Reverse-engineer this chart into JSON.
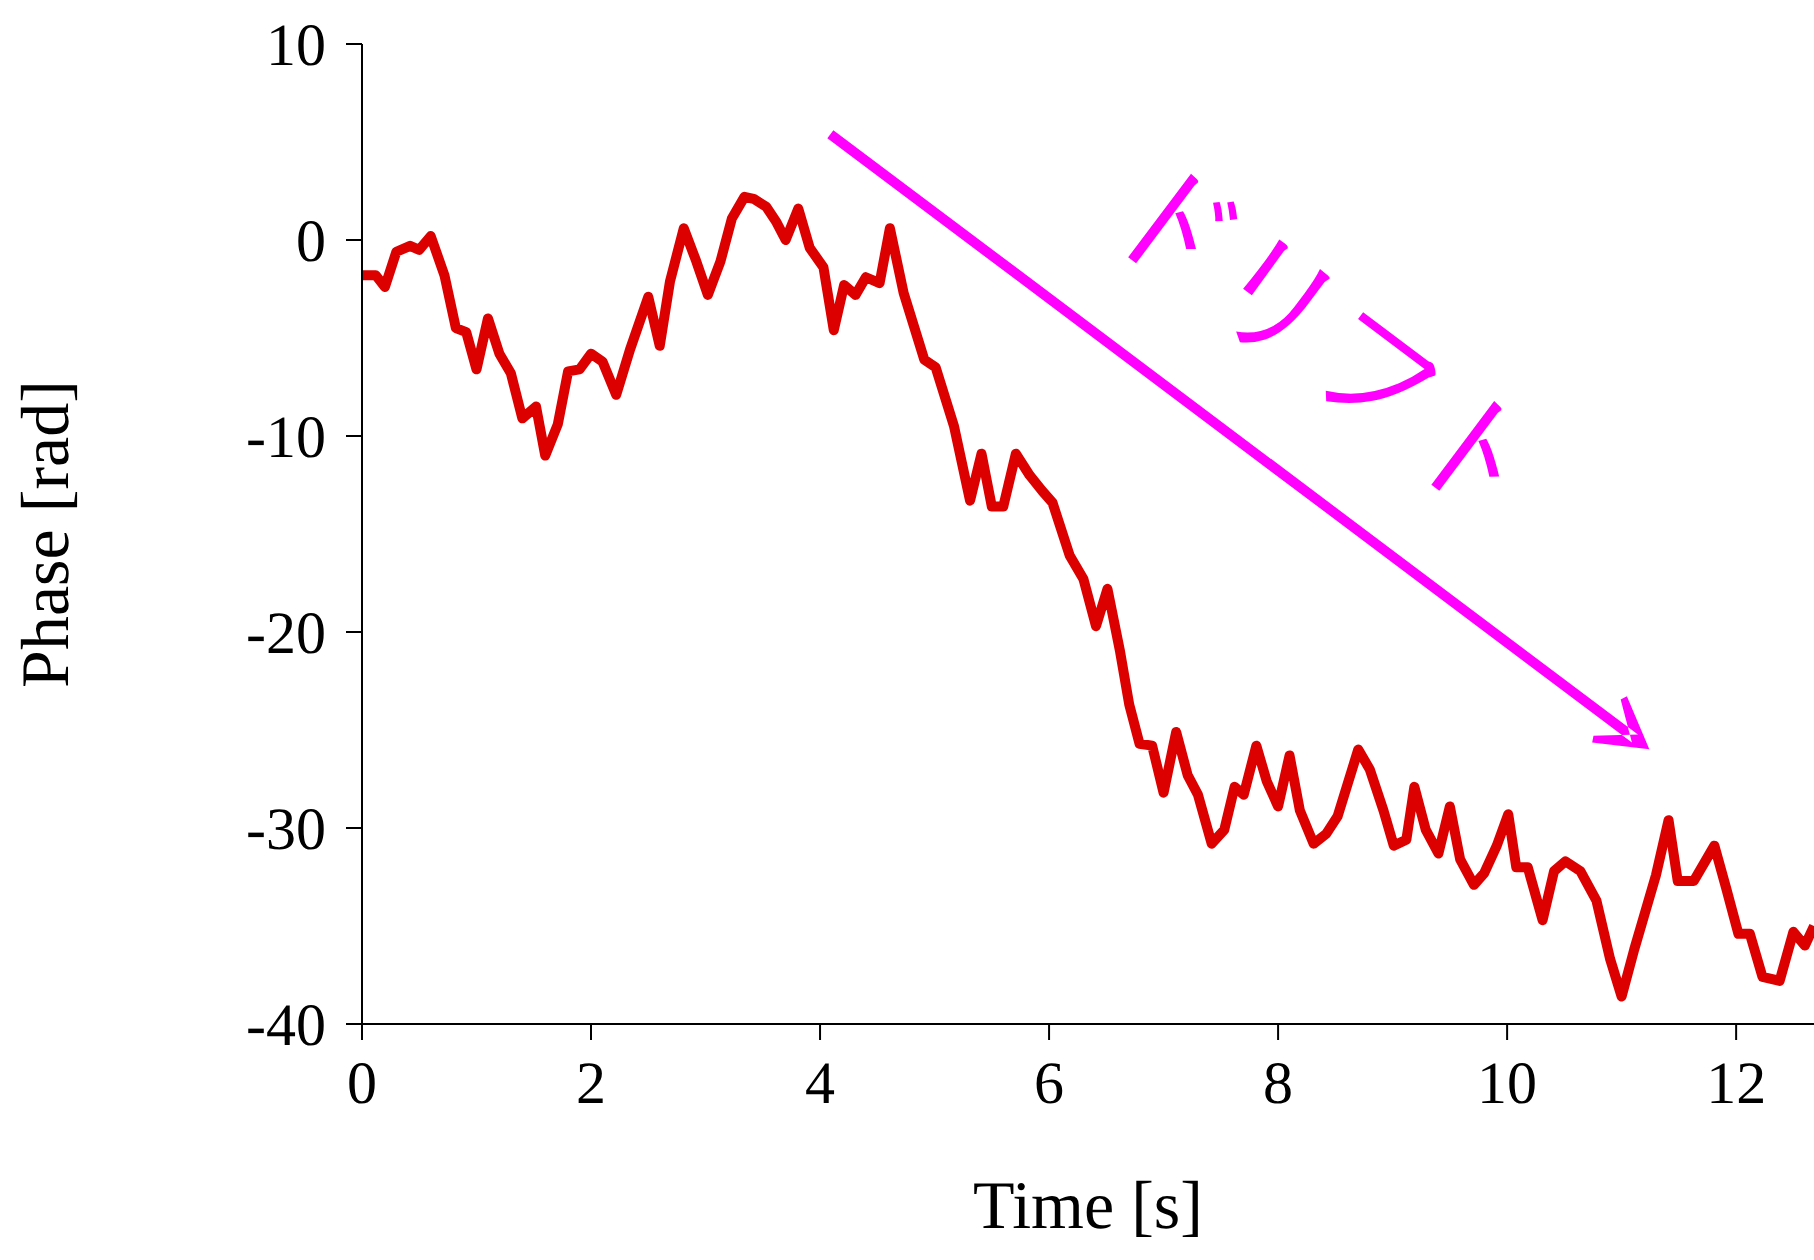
{
  "chart_data": {
    "type": "line",
    "xlabel": "Time [s]",
    "ylabel": "Phase [rad]",
    "annotations": [
      "ドリフト"
    ],
    "xlim": [
      0,
      12.68
    ],
    "ylim": [
      -40,
      10
    ],
    "xticks": [
      0,
      2,
      4,
      6,
      8,
      10,
      12
    ],
    "yticks": [
      -40,
      -30,
      -20,
      -10,
      0,
      10
    ],
    "grid": false,
    "legend": false,
    "marker": "none",
    "line_style": "solid",
    "series": [
      {
        "color": "#dd0000",
        "x": [
          0,
          0.12,
          0.2,
          0.3,
          0.42,
          0.5,
          0.6,
          0.72,
          0.82,
          0.91,
          1.0,
          1.1,
          1.2,
          1.3,
          1.4,
          1.52,
          1.6,
          1.71,
          1.8,
          1.9,
          2.0,
          2.1,
          2.22,
          2.34,
          2.5,
          2.6,
          2.69,
          2.81,
          2.92,
          3.02,
          3.13,
          3.23,
          3.34,
          3.42,
          3.53,
          3.62,
          3.7,
          3.81,
          3.91,
          4.03,
          4.12,
          4.21,
          4.31,
          4.4,
          4.52,
          4.61,
          4.73,
          4.82,
          4.91,
          5.01,
          5.17,
          5.31,
          5.41,
          5.5,
          5.6,
          5.71,
          5.83,
          5.94,
          6.03,
          6.18,
          6.3,
          6.41,
          6.51,
          6.62,
          6.7,
          6.79,
          6.9,
          7.0,
          7.11,
          7.21,
          7.3,
          7.42,
          7.53,
          7.62,
          7.7,
          7.81,
          7.9,
          8.0,
          8.1,
          8.19,
          8.31,
          8.42,
          8.52,
          8.7,
          8.8,
          8.92,
          9.01,
          9.12,
          9.19,
          9.29,
          9.4,
          9.5,
          9.59,
          9.71,
          9.8,
          9.91,
          10.01,
          10.08,
          10.18,
          10.31,
          10.41,
          10.51,
          10.64,
          10.78,
          10.9,
          11.0,
          11.11,
          11.21,
          11.3,
          11.41,
          11.49,
          11.63,
          11.81,
          11.91,
          12.02,
          12.12,
          12.23,
          12.38,
          12.5,
          12.6,
          12.68
        ],
        "values": [
          -1.8,
          -1.8,
          -2.4,
          -0.6,
          -0.3,
          -0.5,
          0.2,
          -1.8,
          -4.5,
          -4.7,
          -6.6,
          -4.0,
          -5.8,
          -6.8,
          -9.1,
          -8.5,
          -11,
          -9.4,
          -6.7,
          -6.6,
          -5.8,
          -6.2,
          -7.9,
          -5.6,
          -2.9,
          -5.4,
          -2.1,
          0.6,
          -1.1,
          -2.8,
          -1.1,
          1.1,
          2.2,
          2.1,
          1.7,
          0.9,
          0,
          1.6,
          -0.4,
          -1.4,
          -4.6,
          -2.3,
          -2.8,
          -1.9,
          -2.2,
          0.6,
          -2.7,
          -4.4,
          -6.1,
          -6.5,
          -9.5,
          -13.3,
          -10.9,
          -13.6,
          -13.6,
          -10.9,
          -12,
          -12.8,
          -13.4,
          -16.1,
          -17.3,
          -19.7,
          -17.8,
          -21,
          -23.7,
          -25.7,
          -25.8,
          -28.2,
          -25.1,
          -27.3,
          -28.3,
          -30.8,
          -30.1,
          -27.9,
          -28.3,
          -25.8,
          -27.6,
          -28.9,
          -26.3,
          -29.1,
          -30.8,
          -30.3,
          -29.4,
          -26,
          -27,
          -29.1,
          -30.9,
          -30.6,
          -27.9,
          -30.1,
          -31.3,
          -28.9,
          -31.6,
          -32.9,
          -32.3,
          -30.9,
          -29.3,
          -32,
          -32,
          -34.7,
          -32.2,
          -31.7,
          -32.2,
          -33.7,
          -36.7,
          -38.6,
          -36.2,
          -34.2,
          -32.4,
          -29.6,
          -32.7,
          -32.7,
          -30.9,
          -33,
          -35.4,
          -35.4,
          -37.6,
          -37.8,
          -35.3,
          -36,
          -35
        ]
      }
    ]
  }
}
